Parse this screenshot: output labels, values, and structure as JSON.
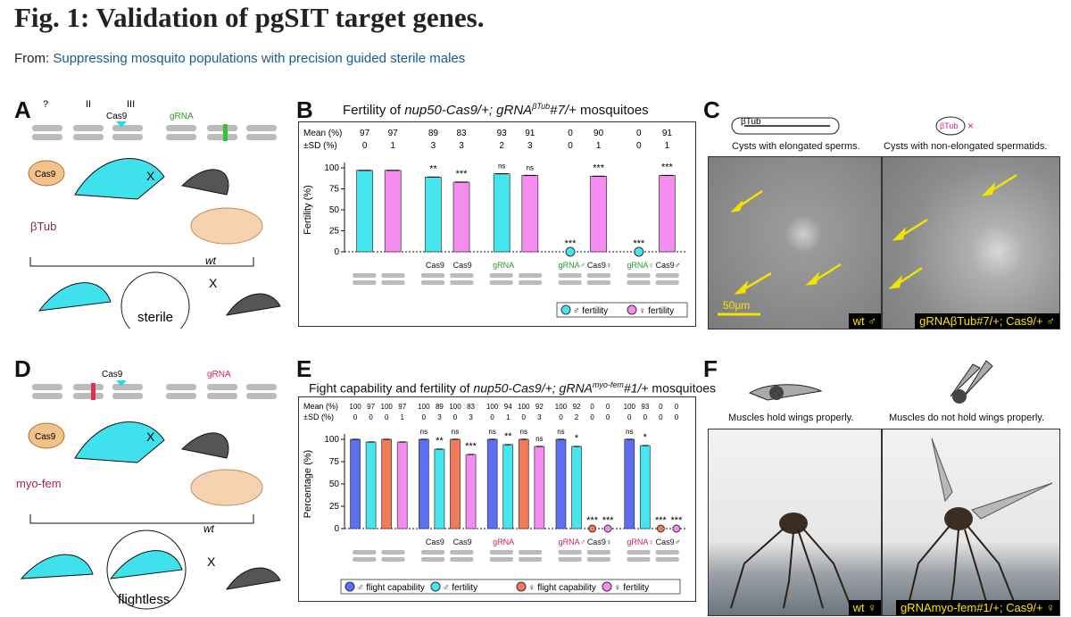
{
  "header": {
    "title": "Fig. 1: Validation of pgSIT target genes.",
    "from_prefix": "From:",
    "from_link": "Suppressing mosquito populations with precision guided sterile males"
  },
  "panels": {
    "A": {
      "label": "A",
      "cas9_tag": "Cas9",
      "gRNA_tag": "gRNA",
      "target": "βTub",
      "chromosomes": [
        "?",
        "II",
        "III"
      ],
      "cross": "X",
      "wt": "wt",
      "sterile": "sterile"
    },
    "B": {
      "label": "B",
      "title_prefix": "Fertility of ",
      "title_italic": "nup50-Cas9/+; gRNA",
      "title_sup": "βTub",
      "title_italic2": "#7/+",
      "title_suffix": " mosquitoes"
    },
    "C": {
      "label": "C",
      "gene": "βTub",
      "left_caption": "Cysts with elongated sperms.",
      "right_caption": "Cysts with non-elongated spermatids.",
      "scale": "50μm",
      "left_badge": "wt ♂",
      "right_badge": "gRNAβTub#7/+; Cas9/+ ♂"
    },
    "D": {
      "label": "D",
      "cas9_tag": "Cas9",
      "gRNA_tag": "gRNA",
      "target": "myo-fem",
      "cross": "X",
      "wt": "wt",
      "flightless": "flightless"
    },
    "E": {
      "label": "E",
      "title_prefix": "Fight capability and fertility of ",
      "title_italic": "nup50-Cas9/+; gRNA",
      "title_sup": "myo-fem",
      "title_italic2": "#1/+",
      "title_suffix": " mosquitoes"
    },
    "F": {
      "label": "F",
      "left_caption": "Muscles hold wings properly.",
      "right_caption": "Muscles do not hold wings properly.",
      "left_badge": "wt ♀",
      "right_badge": "gRNAmyo-fem#1/+; Cas9/+ ♀"
    }
  },
  "chart_data": [
    {
      "id": "B",
      "type": "bar",
      "ylabel": "Fertility (%)",
      "ylim": [
        0,
        100
      ],
      "yticks": [
        0,
        25,
        50,
        75,
        100
      ],
      "row_labels": [
        "Mean (%)",
        "±SD (%)"
      ],
      "genotype_labels": [
        "",
        "",
        "Cas9",
        "Cas9",
        "gRNA",
        "",
        "gRNA♂",
        "Cas9♀",
        "gRNA♀",
        "Cas9♂"
      ],
      "series": [
        {
          "name": "♂ fertility",
          "color": "#45e6ee"
        },
        {
          "name": "♀ fertility",
          "color": "#f58cf0"
        }
      ],
      "bars": [
        {
          "sex": "m",
          "mean": 97,
          "sd": 0,
          "sig": ""
        },
        {
          "sex": "f",
          "mean": 97,
          "sd": 1,
          "sig": ""
        },
        {
          "sex": "m",
          "mean": 89,
          "sd": 3,
          "sig": "**"
        },
        {
          "sex": "f",
          "mean": 83,
          "sd": 3,
          "sig": "***"
        },
        {
          "sex": "m",
          "mean": 93,
          "sd": 2,
          "sig": "ns"
        },
        {
          "sex": "f",
          "mean": 91,
          "sd": 3,
          "sig": "ns"
        },
        {
          "sex": "m",
          "mean": 0,
          "sd": 0,
          "sig": "***"
        },
        {
          "sex": "f",
          "mean": 90,
          "sd": 1,
          "sig": "***"
        },
        {
          "sex": "m",
          "mean": 0,
          "sd": 0,
          "sig": "***"
        },
        {
          "sex": "f",
          "mean": 91,
          "sd": 1,
          "sig": "***"
        }
      ],
      "legend": [
        "♂ fertility",
        "♀ fertility"
      ]
    },
    {
      "id": "E",
      "type": "bar",
      "ylabel": "Percentage (%)",
      "ylim": [
        0,
        100
      ],
      "yticks": [
        0,
        25,
        50,
        75,
        100
      ],
      "row_labels": [
        "Mean (%)",
        "±SD (%)"
      ],
      "genotype_labels": [
        "",
        "",
        "Cas9",
        "Cas9",
        "gRNA",
        "",
        "gRNA♂",
        "Cas9♀",
        "gRNA♀",
        "Cas9♂"
      ],
      "series": [
        {
          "name": "♂ flight capability",
          "color": "#5d6ef0"
        },
        {
          "name": "♂ fertility",
          "color": "#45e6ee"
        },
        {
          "name": "♀ flight capability",
          "color": "#f07a5a"
        },
        {
          "name": "♀ fertility",
          "color": "#f58cf0"
        }
      ],
      "bars": [
        {
          "kind": "mflight",
          "mean": 100,
          "sd": 0,
          "sig": ""
        },
        {
          "kind": "mfert",
          "mean": 97,
          "sd": 0,
          "sig": ""
        },
        {
          "kind": "fflight",
          "mean": 100,
          "sd": 0,
          "sig": ""
        },
        {
          "kind": "ffert",
          "mean": 97,
          "sd": 1,
          "sig": ""
        },
        {
          "kind": "mflight",
          "mean": 100,
          "sd": 0,
          "sig": "ns"
        },
        {
          "kind": "mfert",
          "mean": 89,
          "sd": 3,
          "sig": "**"
        },
        {
          "kind": "fflight",
          "mean": 100,
          "sd": 0,
          "sig": "ns"
        },
        {
          "kind": "ffert",
          "mean": 83,
          "sd": 3,
          "sig": "***"
        },
        {
          "kind": "mflight",
          "mean": 100,
          "sd": 0,
          "sig": "ns"
        },
        {
          "kind": "mfert",
          "mean": 94,
          "sd": 1,
          "sig": "**"
        },
        {
          "kind": "fflight",
          "mean": 100,
          "sd": 0,
          "sig": "ns"
        },
        {
          "kind": "ffert",
          "mean": 92,
          "sd": 3,
          "sig": "ns"
        },
        {
          "kind": "mflight",
          "mean": 100,
          "sd": 0,
          "sig": "ns"
        },
        {
          "kind": "mfert",
          "mean": 92,
          "sd": 2,
          "sig": "*"
        },
        {
          "kind": "fflight",
          "mean": 0,
          "sd": 0,
          "sig": "***"
        },
        {
          "kind": "ffert",
          "mean": 0,
          "sd": 0,
          "sig": "***"
        },
        {
          "kind": "mflight",
          "mean": 100,
          "sd": 0,
          "sig": "ns"
        },
        {
          "kind": "mfert",
          "mean": 93,
          "sd": 0,
          "sig": "*"
        },
        {
          "kind": "fflight",
          "mean": 0,
          "sd": 0,
          "sig": "***"
        },
        {
          "kind": "ffert",
          "mean": 0,
          "sd": 0,
          "sig": "***"
        }
      ],
      "legend": [
        "♂ flight capability",
        "♂ fertility",
        "♀ flight capability",
        "♀ fertility"
      ]
    }
  ]
}
